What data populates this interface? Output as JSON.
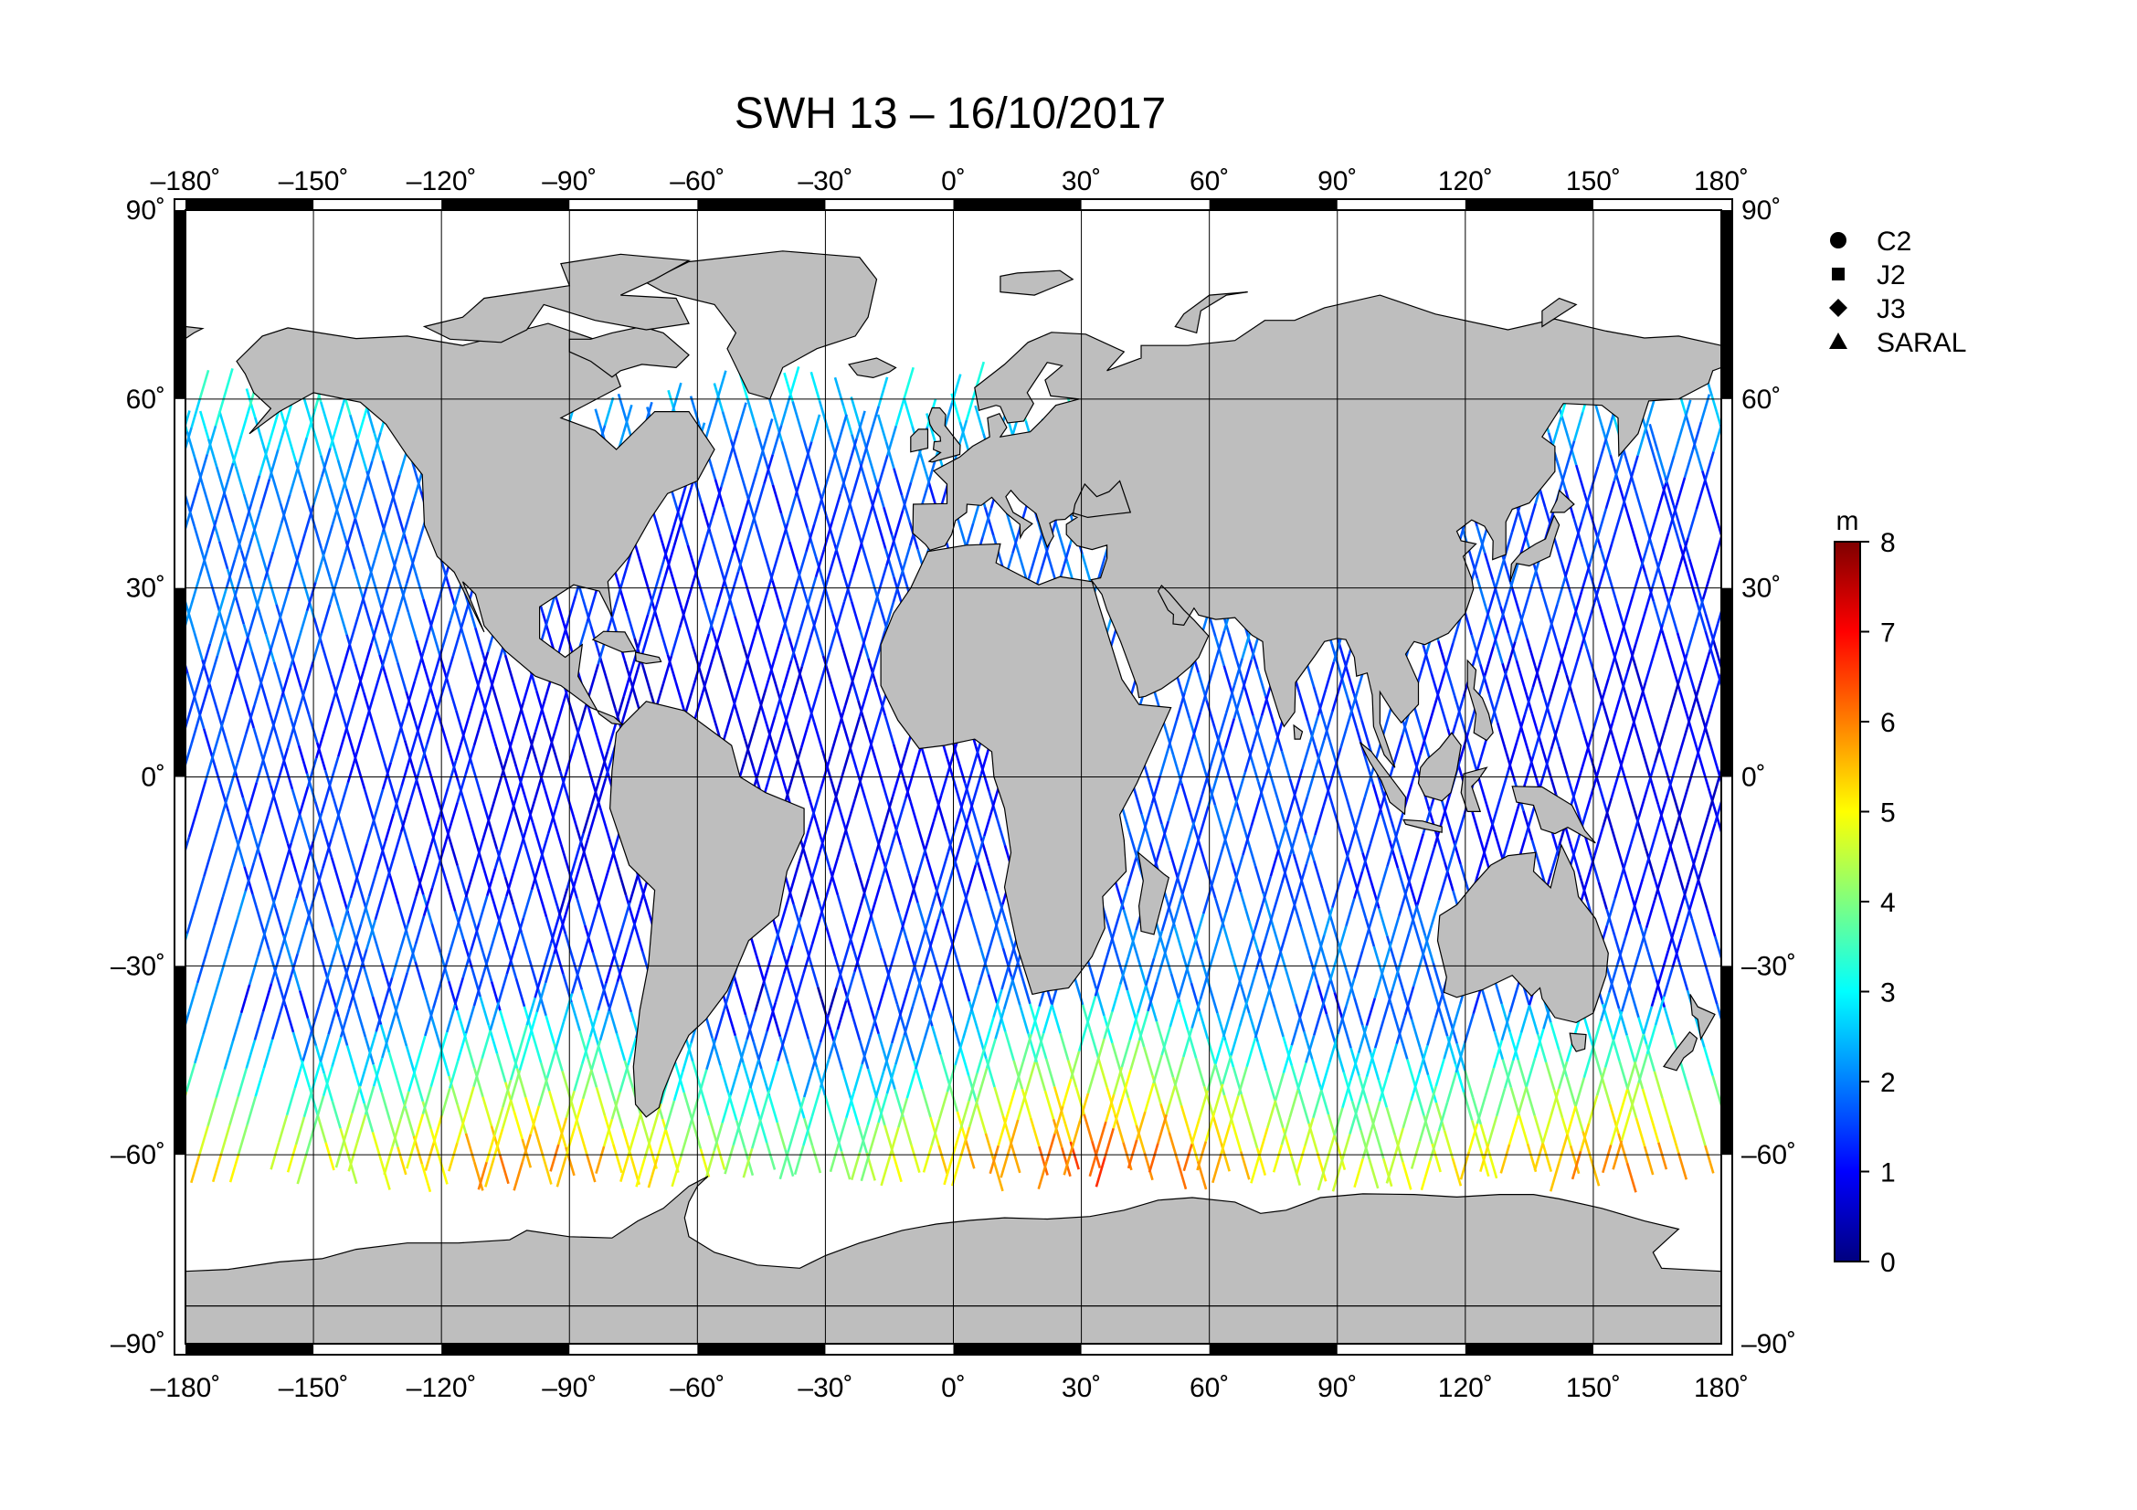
{
  "chart_data": {
    "type": "map",
    "title": "SWH 13 – 16/10/2017",
    "projection": "equirectangular",
    "xlim": [
      -180,
      180
    ],
    "ylim": [
      -90,
      90
    ],
    "x_ticks": [
      -180,
      -150,
      -120,
      -90,
      -60,
      -30,
      0,
      30,
      60,
      90,
      120,
      150,
      180
    ],
    "x_tick_labels": [
      "–180˚",
      "–150˚",
      "–120˚",
      "–90˚",
      "–60˚",
      "–30˚",
      "0˚",
      "30˚",
      "60˚",
      "90˚",
      "120˚",
      "150˚",
      "180˚"
    ],
    "y_ticks": [
      90,
      60,
      30,
      0,
      -30,
      -60,
      -90
    ],
    "y_tick_labels": [
      "90˚",
      "60˚",
      "30˚",
      "0˚",
      "–30˚",
      "–60˚",
      "–90˚"
    ],
    "grid": true,
    "land_color": "#bebebe",
    "legend": {
      "placement": "right",
      "entries": [
        {
          "label": "C2",
          "marker": "circle"
        },
        {
          "label": "J2",
          "marker": "square"
        },
        {
          "label": "J3",
          "marker": "diamond"
        },
        {
          "label": "SARAL",
          "marker": "triangle"
        }
      ]
    },
    "colorbar": {
      "unit": "m",
      "min": 0,
      "max": 8,
      "ticks": [
        "8",
        "7",
        "6",
        "5",
        "4",
        "3",
        "2",
        "1",
        "0"
      ],
      "colormap": [
        "#00007f",
        "#0000ff",
        "#007fff",
        "#00ffff",
        "#7fff7f",
        "#ffff00",
        "#ff7f00",
        "#ff0000",
        "#7f0000"
      ]
    },
    "tracks_description_visible": false
  }
}
